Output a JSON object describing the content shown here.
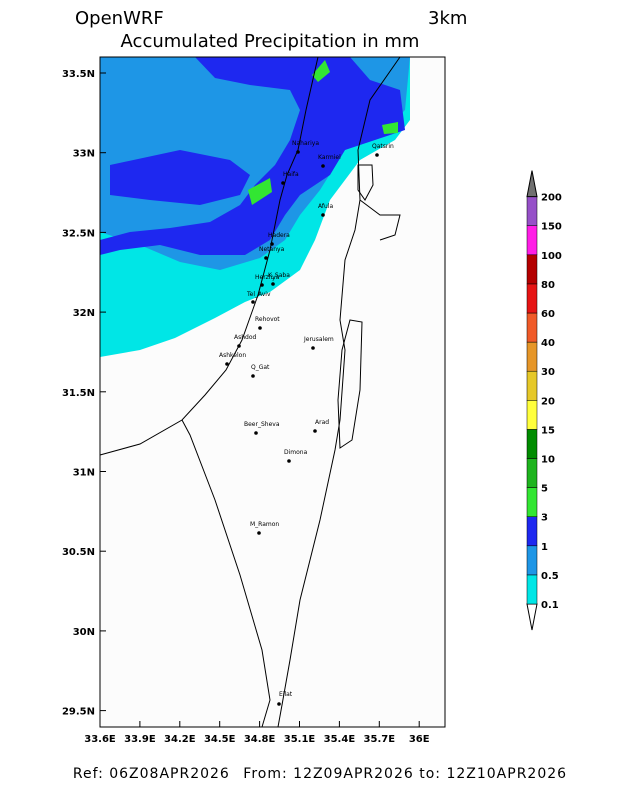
{
  "header": {
    "model": "OpenWRF",
    "resolution": "3km",
    "title": "Accumulated Precipitation in mm"
  },
  "map": {
    "lon_ticks": [
      "33.6E",
      "33.9E",
      "34.2E",
      "34.5E",
      "34.8E",
      "35.1E",
      "35.4E",
      "35.7E",
      "36E"
    ],
    "lat_ticks": [
      "33.5N",
      "33N",
      "32.5N",
      "32N",
      "31.5N",
      "31N",
      "30.5N",
      "30N",
      "29.5N"
    ],
    "cities": [
      {
        "name": "Nahariya"
      },
      {
        "name": "Karmiel"
      },
      {
        "name": "Qatsrin"
      },
      {
        "name": "Haifa"
      },
      {
        "name": "Afula"
      },
      {
        "name": "Hadera"
      },
      {
        "name": "Netanya"
      },
      {
        "name": "K_Saba"
      },
      {
        "name": "Herzliya"
      },
      {
        "name": "Tel_Aviv"
      },
      {
        "name": "Rehovot"
      },
      {
        "name": "Ashdod"
      },
      {
        "name": "Ashkelon"
      },
      {
        "name": "Jerusalem"
      },
      {
        "name": "Q_Gat"
      },
      {
        "name": "Beer_Sheva"
      },
      {
        "name": "Arad"
      },
      {
        "name": "Dimona"
      },
      {
        "name": "M_Ramon"
      },
      {
        "name": "Eilat"
      }
    ]
  },
  "colorbar": {
    "labels": [
      "0.1",
      "0.5",
      "1",
      "3",
      "5",
      "10",
      "15",
      "20",
      "30",
      "40",
      "60",
      "80",
      "100",
      "150",
      "200"
    ],
    "colors": [
      "#ffffff",
      "#00e6e6",
      "#1e96e6",
      "#1e28f0",
      "#32e632",
      "#1eb41e",
      "#008c00",
      "#ffff3c",
      "#e6c828",
      "#e69628",
      "#f05a28",
      "#e61414",
      "#b40000",
      "#ff1ee6",
      "#9650c8",
      "#707070"
    ]
  },
  "footer": {
    "ref_label": "Ref:",
    "ref": "06Z08APR2026",
    "from_label": "From:",
    "from": "12Z09APR2026",
    "to_label": "to:",
    "to": "12Z10APR2026"
  }
}
